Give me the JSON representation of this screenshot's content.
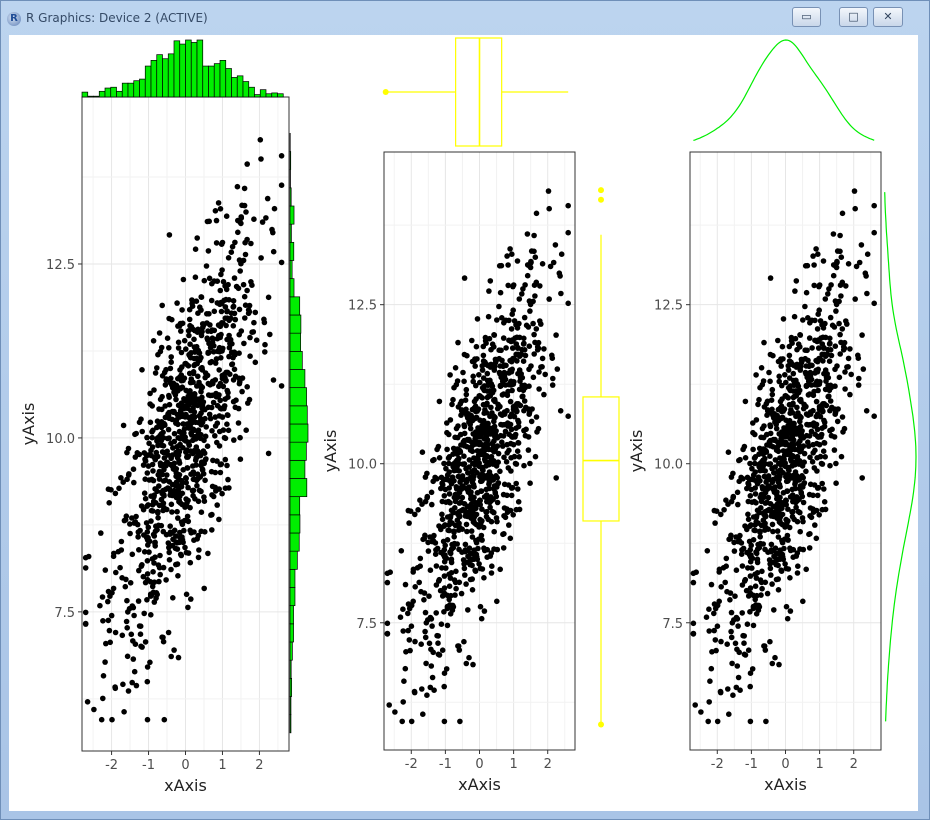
{
  "window": {
    "title": "R Graphics: Device 2 (ACTIVE)",
    "app_icon": "R-logo-icon",
    "controls": {
      "minimize": "▭",
      "maximize": "□",
      "close": "✕"
    }
  },
  "chart_data": [
    {
      "type": "scatter",
      "title": "",
      "xlabel": "xAxis",
      "ylabel": "yAxis",
      "xlim": [
        -2.8,
        2.8
      ],
      "ylim": [
        5.5,
        14.9
      ],
      "x_ticks": [
        "-2",
        "-1",
        "0",
        "1",
        "2"
      ],
      "y_ticks": [
        "7.5",
        "10.0",
        "12.5"
      ],
      "grid": true,
      "points": "approx. 1000 points, bivariate normal: x mean 0, sd 1; y mean 10, sd 1.5, correlation ~0.7",
      "marginal": "histogram",
      "marginal_color": "#00ee00"
    },
    {
      "type": "scatter",
      "title": "",
      "xlabel": "xAxis",
      "ylabel": "yAxis",
      "xlim": [
        -2.8,
        2.8
      ],
      "ylim": [
        5.5,
        14.9
      ],
      "x_ticks": [
        "-2",
        "-1",
        "0",
        "1",
        "2"
      ],
      "y_ticks": [
        "7.5",
        "10.0",
        "12.5"
      ],
      "grid": true,
      "marginal": "boxplot",
      "marginal_color": "#ffff00",
      "x_box": {
        "min": -2.7,
        "q1": -0.7,
        "median": 0.0,
        "q3": 0.65,
        "max": 2.6,
        "outliers": [
          -2.75
        ]
      },
      "y_box": {
        "min": 5.9,
        "q1": 9.1,
        "median": 10.05,
        "q3": 11.05,
        "max": 13.6,
        "outliers": [
          14.15,
          14.3
        ]
      }
    },
    {
      "type": "scatter",
      "title": "",
      "xlabel": "xAxis",
      "ylabel": "yAxis",
      "xlim": [
        -2.8,
        2.8
      ],
      "ylim": [
        5.5,
        14.9
      ],
      "x_ticks": [
        "-2",
        "-1",
        "0",
        "1",
        "2"
      ],
      "y_ticks": [
        "7.5",
        "10.0",
        "12.5"
      ],
      "grid": true,
      "marginal": "density",
      "marginal_color": "#00ee00"
    }
  ]
}
